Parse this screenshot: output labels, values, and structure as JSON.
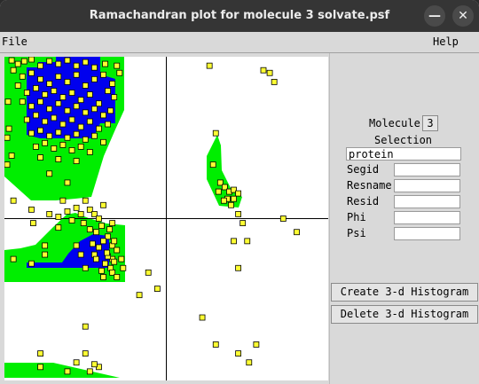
{
  "window": {
    "title": "Ramachandran plot for molecule 3 solvate.psf",
    "minimize_glyph": "—",
    "close_glyph": "✕"
  },
  "menu": {
    "file": "File",
    "help": "Help"
  },
  "panel": {
    "molecule_label": "Molecule",
    "molecule_value": "3",
    "selection_label": "Selection",
    "selection_value": "protein",
    "fields": [
      {
        "label": "Segid",
        "value": ""
      },
      {
        "label": "Resname",
        "value": ""
      },
      {
        "label": "Resid",
        "value": ""
      },
      {
        "label": "Phi",
        "value": ""
      },
      {
        "label": "Psi",
        "value": ""
      }
    ],
    "create_button": "Create 3-d Histogram",
    "delete_button": "Delete 3-d Histogram"
  },
  "colors": {
    "allowed_region": "#00ee00",
    "core_region": "#0000ee",
    "point_fill": "#ffff33",
    "point_stroke": "#000000",
    "axis": "#000000"
  },
  "plot": {
    "x_range": [
      -180,
      180
    ],
    "y_range": [
      -180,
      180
    ],
    "points": [
      [
        -172,
        176
      ],
      [
        -165,
        172
      ],
      [
        -158,
        175
      ],
      [
        -150,
        178
      ],
      [
        -140,
        170
      ],
      [
        -130,
        175
      ],
      [
        -120,
        172
      ],
      [
        -110,
        176
      ],
      [
        -100,
        170
      ],
      [
        -90,
        174
      ],
      [
        -80,
        168
      ],
      [
        -68,
        172
      ],
      [
        -55,
        170
      ],
      [
        -170,
        165
      ],
      [
        -160,
        158
      ],
      [
        -150,
        162
      ],
      [
        -140,
        155
      ],
      [
        -130,
        150
      ],
      [
        -120,
        158
      ],
      [
        -110,
        152
      ],
      [
        -100,
        160
      ],
      [
        -90,
        148
      ],
      [
        -80,
        155
      ],
      [
        -70,
        160
      ],
      [
        -60,
        150
      ],
      [
        -52,
        162
      ],
      [
        -165,
        148
      ],
      [
        -155,
        140
      ],
      [
        -145,
        145
      ],
      [
        -135,
        138
      ],
      [
        -125,
        142
      ],
      [
        -115,
        135
      ],
      [
        -105,
        140
      ],
      [
        -95,
        132
      ],
      [
        -85,
        138
      ],
      [
        -75,
        128
      ],
      [
        -65,
        142
      ],
      [
        -58,
        135
      ],
      [
        -160,
        130
      ],
      [
        -150,
        125
      ],
      [
        -140,
        130
      ],
      [
        -130,
        122
      ],
      [
        -120,
        128
      ],
      [
        -110,
        120
      ],
      [
        -100,
        125
      ],
      [
        -90,
        118
      ],
      [
        -80,
        122
      ],
      [
        -70,
        115
      ],
      [
        -62,
        120
      ],
      [
        -155,
        110
      ],
      [
        -145,
        115
      ],
      [
        -135,
        108
      ],
      [
        -125,
        112
      ],
      [
        -115,
        105
      ],
      [
        -105,
        110
      ],
      [
        -95,
        102
      ],
      [
        -85,
        108
      ],
      [
        -75,
        100
      ],
      [
        -65,
        105
      ],
      [
        -150,
        95
      ],
      [
        -140,
        98
      ],
      [
        -130,
        92
      ],
      [
        -120,
        96
      ],
      [
        -110,
        90
      ],
      [
        -100,
        94
      ],
      [
        -90,
        88
      ],
      [
        -80,
        92
      ],
      [
        -70,
        85
      ],
      [
        -145,
        80
      ],
      [
        -135,
        84
      ],
      [
        -125,
        78
      ],
      [
        -115,
        82
      ],
      [
        -105,
        76
      ],
      [
        -95,
        80
      ],
      [
        -85,
        74
      ],
      [
        -140,
        68
      ],
      [
        -120,
        66
      ],
      [
        -100,
        64
      ],
      [
        -130,
        50
      ],
      [
        -110,
        40
      ],
      [
        -175,
        100
      ],
      [
        -178,
        60
      ],
      [
        -170,
        20
      ],
      [
        -148,
        -5
      ],
      [
        -135,
        -30
      ],
      [
        -60,
        -45
      ],
      [
        -110,
        -170
      ],
      [
        -90,
        -150
      ],
      [
        -140,
        -150
      ],
      [
        -75,
        -165
      ],
      [
        -178,
        90
      ],
      [
        -176,
        130
      ],
      [
        -172,
        70
      ],
      [
        -130,
        5
      ],
      [
        -120,
        -10
      ],
      [
        -150,
        10
      ],
      [
        -90,
        20
      ],
      [
        -85,
        10
      ],
      [
        -80,
        5
      ],
      [
        -75,
        0
      ],
      [
        -70,
        15
      ],
      [
        -95,
        5
      ],
      [
        -100,
        12
      ],
      [
        -110,
        8
      ],
      [
        -115,
        20
      ],
      [
        -120,
        2
      ],
      [
        -105,
        -2
      ],
      [
        -92,
        -5
      ],
      [
        -72,
        -8
      ],
      [
        -78,
        -15
      ],
      [
        -85,
        -12
      ],
      [
        -65,
        -20
      ],
      [
        -70,
        -25
      ],
      [
        -60,
        -30
      ],
      [
        -75,
        -32
      ],
      [
        -80,
        -40
      ],
      [
        -65,
        -42
      ],
      [
        -55,
        -35
      ],
      [
        -58,
        -48
      ],
      [
        -68,
        -50
      ],
      [
        -62,
        -55
      ],
      [
        -72,
        -58
      ],
      [
        -78,
        -45
      ],
      [
        -66,
        -38
      ],
      [
        -60,
        -60
      ],
      [
        -50,
        -45
      ],
      [
        -48,
        -55
      ],
      [
        -70,
        -65
      ],
      [
        -95,
        -40
      ],
      [
        -100,
        -30
      ],
      [
        -82,
        -28
      ],
      [
        -90,
        -55
      ],
      [
        -58,
        -25
      ],
      [
        -63,
        -12
      ],
      [
        -135,
        -40
      ],
      [
        -150,
        -50
      ],
      [
        -170,
        -45
      ],
      [
        -60,
        -5
      ],
      [
        -55,
        -65
      ],
      [
        -20,
        -60
      ],
      [
        -10,
        -78
      ],
      [
        -30,
        -85
      ],
      [
        48,
        170
      ],
      [
        108,
        165
      ],
      [
        115,
        162
      ],
      [
        120,
        152
      ],
      [
        55,
        95
      ],
      [
        52,
        60
      ],
      [
        60,
        40
      ],
      [
        65,
        35
      ],
      [
        70,
        30
      ],
      [
        75,
        32
      ],
      [
        80,
        28
      ],
      [
        58,
        30
      ],
      [
        68,
        22
      ],
      [
        75,
        22
      ],
      [
        72,
        15
      ],
      [
        80,
        5
      ],
      [
        64,
        20
      ],
      [
        130,
        0
      ],
      [
        145,
        -15
      ],
      [
        85,
        -5
      ],
      [
        75,
        -25
      ],
      [
        80,
        -55
      ],
      [
        90,
        -25
      ],
      [
        40,
        -110
      ],
      [
        55,
        -140
      ],
      [
        80,
        -150
      ],
      [
        100,
        -140
      ],
      [
        92,
        -160
      ],
      [
        -90,
        -120
      ],
      [
        -140,
        -165
      ],
      [
        -85,
        -170
      ],
      [
        -100,
        -160
      ],
      [
        -80,
        -162
      ]
    ]
  }
}
